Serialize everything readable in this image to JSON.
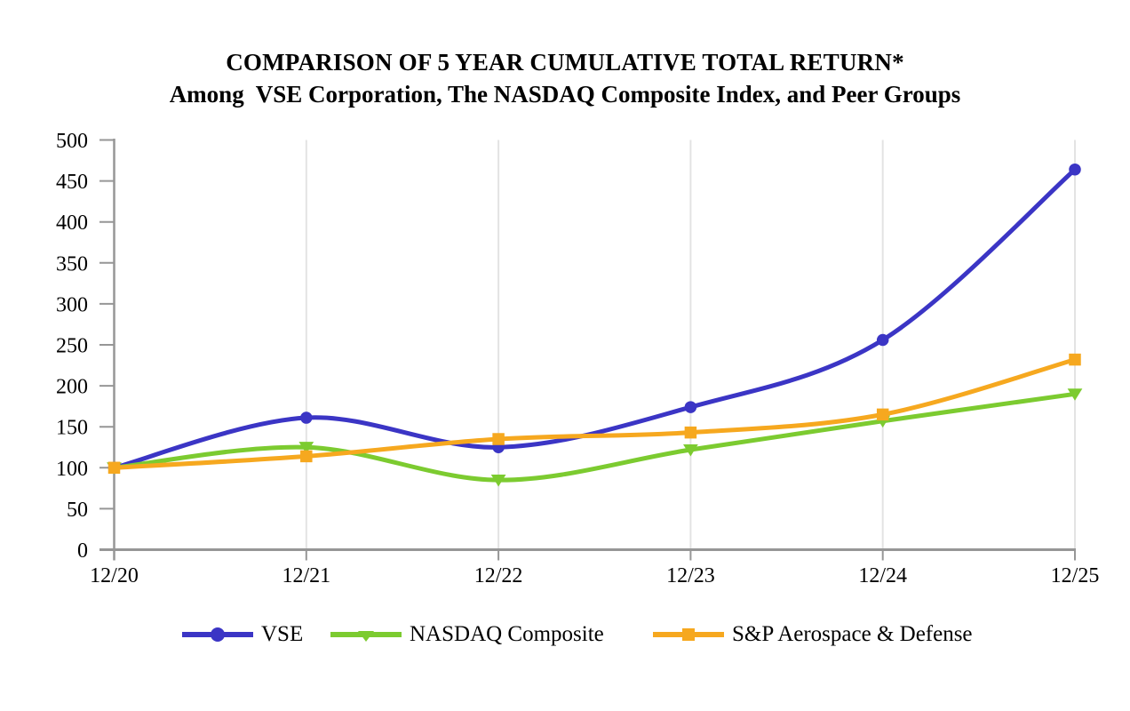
{
  "chart_data": {
    "type": "line",
    "title": "COMPARISON OF 5 YEAR CUMULATIVE TOTAL RETURN*",
    "subtitle": "Among  VSE Corporation, The NASDAQ Composite Index, and Peer Groups",
    "categories": [
      "12/20",
      "12/21",
      "12/22",
      "12/23",
      "12/24",
      "12/25"
    ],
    "series": [
      {
        "name": "VSE",
        "color": "#3B35C5",
        "marker": "circle",
        "values": [
          100,
          161,
          125,
          174,
          256,
          464
        ]
      },
      {
        "name": "NASDAQ Composite",
        "color": "#7CCB30",
        "marker": "triangle-down",
        "values": [
          100,
          125,
          85,
          122,
          157,
          190
        ]
      },
      {
        "name": "S&P Aerospace & Defense",
        "color": "#F6A81F",
        "marker": "square",
        "values": [
          100,
          114,
          135,
          143,
          165,
          232
        ]
      }
    ],
    "ylim": [
      0,
      500
    ],
    "yticks": [
      0,
      50,
      100,
      150,
      200,
      250,
      300,
      350,
      400,
      450,
      500
    ],
    "xlabel": "",
    "ylabel": "",
    "grid": "vertical-only",
    "smoothed": true,
    "legend_position": "bottom",
    "axis_color": "#969696",
    "grid_color": "#E3E3E3",
    "text_color": "#000000"
  }
}
